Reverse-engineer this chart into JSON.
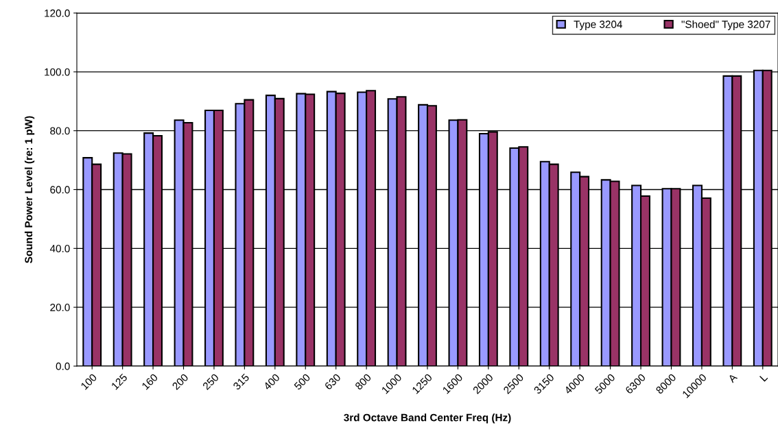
{
  "chart_data": {
    "type": "bar",
    "xlabel": "3rd Octave Band Center Freq (Hz)",
    "ylabel": "Sound Power Level (re: 1 pW)",
    "categories": [
      "100",
      "125",
      "160",
      "200",
      "250",
      "315",
      "400",
      "500",
      "630",
      "800",
      "1000",
      "1250",
      "1600",
      "2000",
      "2500",
      "3150",
      "4000",
      "5000",
      "6300",
      "8000",
      "10000",
      "A",
      "L"
    ],
    "series": [
      {
        "name": "Type 3204",
        "color": "#9999ff",
        "values": [
          70.8,
          72.4,
          79.2,
          83.6,
          86.9,
          89.2,
          92.0,
          92.6,
          93.3,
          93.1,
          90.8,
          88.8,
          83.6,
          79.0,
          74.1,
          69.5,
          65.9,
          63.3,
          61.4,
          60.3,
          61.4,
          98.6,
          100.5
        ]
      },
      {
        "name": "\"Shoed\" Type 3207",
        "color": "#993366",
        "values": [
          68.6,
          72.1,
          78.3,
          82.7,
          86.9,
          90.5,
          90.9,
          92.4,
          92.7,
          93.6,
          91.5,
          88.5,
          83.7,
          79.6,
          74.5,
          68.6,
          64.4,
          62.8,
          57.8,
          60.3,
          57.1,
          98.6,
          100.5
        ]
      }
    ],
    "ylim": [
      0,
      120
    ],
    "yticks": [
      {
        "value": 0,
        "label": "0.0"
      },
      {
        "value": 20,
        "label": "20.0"
      },
      {
        "value": 40,
        "label": "40.0"
      },
      {
        "value": 60,
        "label": "60.0"
      },
      {
        "value": 80,
        "label": "80.0"
      },
      {
        "value": 100,
        "label": "100.0"
      },
      {
        "value": 120,
        "label": "120.0"
      }
    ],
    "grid": "y",
    "legend": "top right"
  }
}
